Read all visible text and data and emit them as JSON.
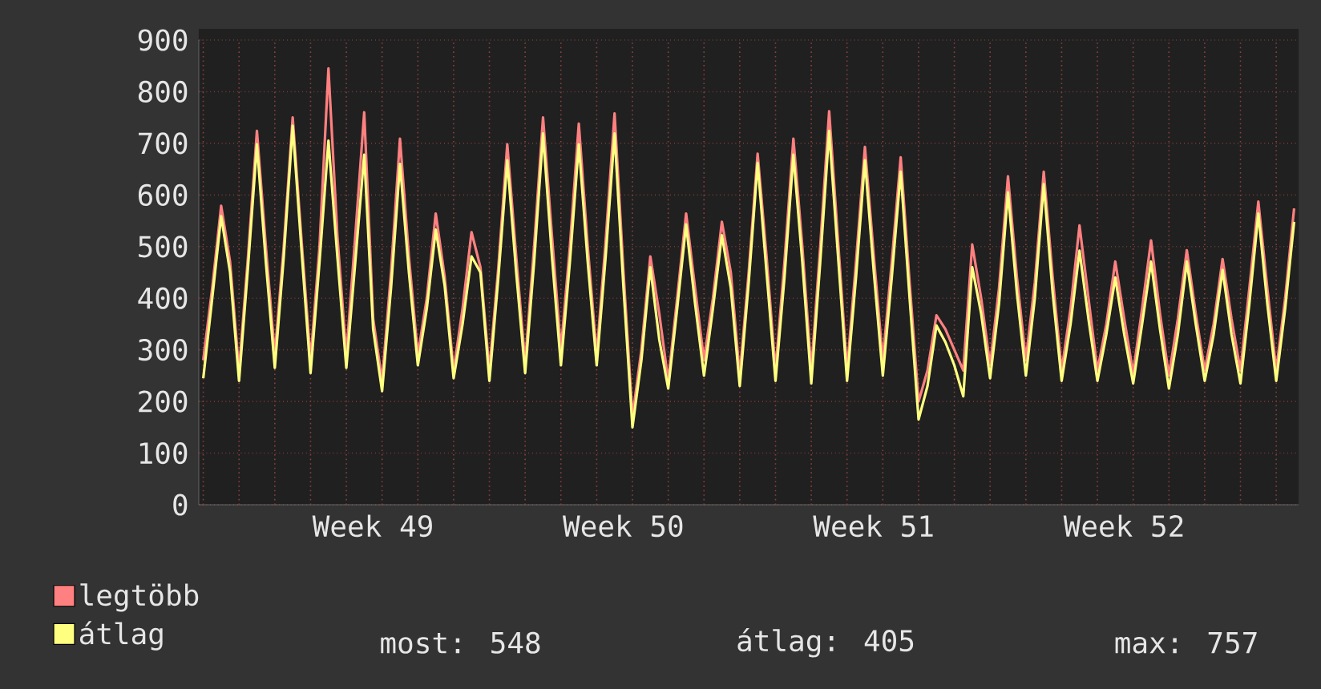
{
  "chart_data": {
    "type": "line",
    "categories": [
      null,
      null,
      null,
      null,
      null,
      null,
      null,
      null,
      null,
      null,
      null,
      null,
      null,
      null,
      null,
      null,
      null,
      null,
      null,
      "Week 49",
      null,
      null,
      null,
      null,
      null,
      null,
      null,
      null,
      null,
      null,
      null,
      null,
      null,
      null,
      null,
      null,
      null,
      null,
      null,
      null,
      null,
      null,
      null,
      null,
      null,
      null,
      null,
      "Week 50",
      null,
      null,
      null,
      null,
      null,
      null,
      null,
      null,
      null,
      null,
      null,
      null,
      null,
      null,
      null,
      null,
      null,
      null,
      null,
      null,
      null,
      null,
      null,
      null,
      null,
      null,
      null,
      "Week 51",
      null,
      null,
      null,
      null,
      null,
      null,
      null,
      null,
      null,
      null,
      null,
      null,
      null,
      null,
      null,
      null,
      null,
      null,
      null,
      null,
      null,
      null,
      null,
      null,
      null,
      null,
      null,
      "Week 52",
      null,
      null,
      null,
      null,
      null,
      null,
      null,
      null,
      null,
      null,
      null,
      null,
      null,
      null,
      null,
      null,
      null,
      null,
      null
    ],
    "series": [
      {
        "name": "legtöbb",
        "color": "#ff8080",
        "values": [
          280,
          420,
          579,
          470,
          260,
          480,
          724,
          500,
          290,
          500,
          750,
          510,
          280,
          500,
          845,
          520,
          290,
          520,
          760,
          360,
          240,
          450,
          709,
          480,
          290,
          400,
          564,
          441,
          260,
          380,
          528,
          460,
          260,
          460,
          698,
          480,
          275,
          500,
          750,
          520,
          300,
          500,
          738,
          500,
          290,
          510,
          758,
          450,
          170,
          300,
          481,
          370,
          240,
          400,
          564,
          420,
          280,
          400,
          548,
          450,
          250,
          450,
          680,
          480,
          260,
          470,
          709,
          500,
          260,
          500,
          762,
          510,
          260,
          470,
          693,
          480,
          280,
          470,
          673,
          430,
          200,
          260,
          367,
          340,
          300,
          260,
          504,
          400,
          270,
          420,
          636,
          440,
          280,
          430,
          645,
          440,
          260,
          380,
          541,
          400,
          260,
          350,
          471,
          360,
          255,
          380,
          512,
          370,
          250,
          360,
          493,
          370,
          260,
          350,
          476,
          360,
          260,
          420,
          587,
          420,
          260,
          400,
          574
        ]
      },
      {
        "name": "átlag",
        "color": "#ffff80",
        "values": [
          245,
          400,
          559,
          450,
          240,
          460,
          698,
          470,
          265,
          480,
          734,
          490,
          255,
          470,
          705,
          480,
          265,
          470,
          678,
          340,
          220,
          420,
          660,
          450,
          270,
          380,
          533,
          424,
          245,
          350,
          481,
          450,
          240,
          440,
          667,
          450,
          255,
          470,
          719,
          480,
          270,
          470,
          698,
          470,
          270,
          480,
          719,
          420,
          150,
          280,
          460,
          320,
          225,
          380,
          543,
          390,
          250,
          380,
          522,
          420,
          230,
          430,
          662,
          450,
          240,
          440,
          678,
          470,
          235,
          470,
          724,
          480,
          240,
          440,
          667,
          450,
          250,
          440,
          645,
          400,
          165,
          230,
          347,
          315,
          270,
          210,
          460,
          370,
          245,
          390,
          605,
          410,
          250,
          400,
          621,
          410,
          240,
          350,
          492,
          360,
          240,
          330,
          440,
          330,
          235,
          350,
          471,
          340,
          225,
          330,
          471,
          350,
          240,
          330,
          455,
          330,
          235,
          390,
          564,
          390,
          240,
          380,
          548
        ]
      }
    ],
    "ylim": [
      0,
      900
    ],
    "yticks": [
      0,
      100,
      200,
      300,
      400,
      500,
      600,
      700,
      800,
      900
    ],
    "grid": true,
    "legend": "bottom",
    "marker": "none",
    "line_style": "solid",
    "annotations": [
      "most: 548",
      "átlag: 405",
      "max: 757"
    ]
  }
}
